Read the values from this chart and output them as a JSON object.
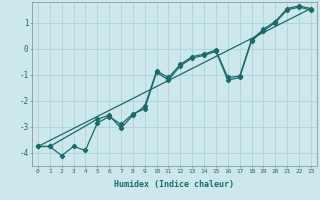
{
  "xlabel": "Humidex (Indice chaleur)",
  "background_color": "#cde8ec",
  "grid_color": "#aacdd3",
  "line_color": "#1a6b6b",
  "xlim": [
    -0.5,
    23.5
  ],
  "ylim": [
    -4.5,
    1.8
  ],
  "yticks": [
    -4,
    -3,
    -2,
    -1,
    0,
    1
  ],
  "xticks": [
    0,
    1,
    2,
    3,
    4,
    5,
    6,
    7,
    8,
    9,
    10,
    11,
    12,
    13,
    14,
    15,
    16,
    17,
    18,
    19,
    20,
    21,
    22,
    23
  ],
  "line1_x": [
    0,
    1,
    2,
    3,
    4,
    5,
    6,
    7,
    8,
    9,
    10,
    11,
    12,
    13,
    14,
    15,
    16,
    17,
    18,
    19,
    20,
    21,
    22,
    23
  ],
  "line1_y": [
    -3.75,
    -3.75,
    -4.1,
    -3.75,
    -3.9,
    -2.85,
    -2.6,
    -2.9,
    -2.5,
    -2.3,
    -0.9,
    -1.2,
    -0.65,
    -0.35,
    -0.25,
    -0.1,
    -1.2,
    -1.1,
    0.3,
    0.7,
    1.0,
    1.5,
    1.6,
    1.5
  ],
  "line2_x": [
    0,
    1,
    5,
    6,
    7,
    8,
    9,
    10,
    11,
    12,
    13,
    14,
    15,
    16,
    17,
    18,
    19,
    20,
    21,
    22,
    23
  ],
  "line2_y": [
    -3.75,
    -3.75,
    -2.7,
    -2.55,
    -3.05,
    -2.55,
    -2.2,
    -0.85,
    -1.1,
    -0.6,
    -0.3,
    -0.2,
    -0.05,
    -1.1,
    -1.05,
    0.35,
    0.75,
    1.05,
    1.55,
    1.65,
    1.55
  ],
  "line3_x": [
    0,
    23
  ],
  "line3_y": [
    -3.75,
    1.55
  ]
}
